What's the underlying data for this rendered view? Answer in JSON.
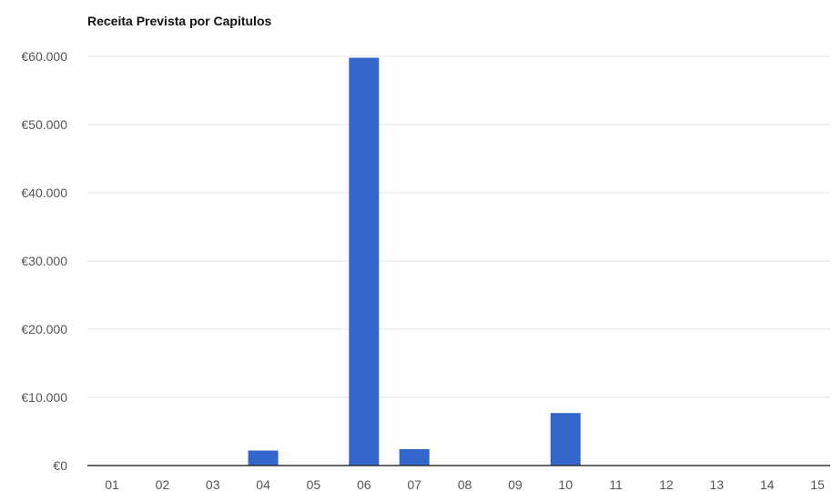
{
  "chart_data": {
    "type": "bar",
    "title": "Receita Prevista por Capitulos",
    "xlabel": "",
    "ylabel": "",
    "categories": [
      "01",
      "02",
      "03",
      "04",
      "05",
      "06",
      "07",
      "08",
      "09",
      "10",
      "11",
      "12",
      "13",
      "14",
      "15"
    ],
    "values": [
      0,
      0,
      0,
      2200,
      0,
      59800,
      2400,
      0,
      0,
      7700,
      0,
      0,
      0,
      0,
      0
    ],
    "ylim": [
      0,
      60000
    ],
    "yticks": [
      0,
      10000,
      20000,
      30000,
      40000,
      50000,
      60000
    ],
    "ytick_labels": [
      "€0",
      "€10.000",
      "€20.000",
      "€30.000",
      "€40.000",
      "€50.000",
      "€60.000"
    ],
    "grid": true,
    "bar_color": "#3366cc"
  }
}
